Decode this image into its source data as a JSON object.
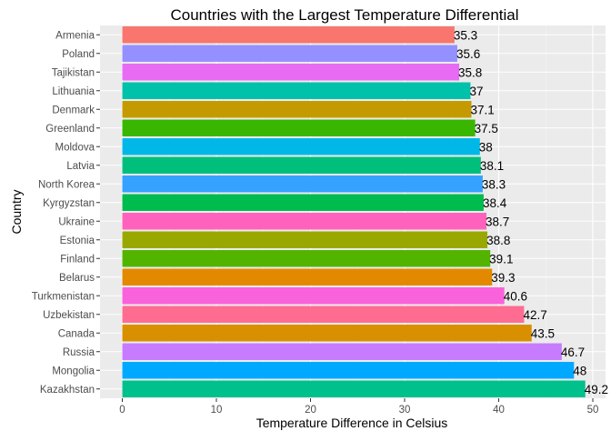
{
  "chart_data": {
    "type": "bar",
    "orientation": "horizontal",
    "title": "Countries with the Largest Temperature Differential",
    "xlabel": "Temperature Difference in Celsius",
    "ylabel": "Country",
    "xlim": [
      0,
      50
    ],
    "xticks": [
      "0",
      "10",
      "20",
      "30",
      "40",
      "50"
    ],
    "grid": true,
    "legend": "none",
    "background": "#ebebeb",
    "categories": [
      "Armenia",
      "Poland",
      "Tajikistan",
      "Lithuania",
      "Denmark",
      "Greenland",
      "Moldova",
      "Latvia",
      "North Korea",
      "Kyrgyzstan",
      "Ukraine",
      "Estonia",
      "Finland",
      "Belarus",
      "Turkmenistan",
      "Uzbekistan",
      "Canada",
      "Russia",
      "Mongolia",
      "Kazakhstan"
    ],
    "values": [
      35.3,
      35.6,
      35.8,
      37,
      37.1,
      37.5,
      38,
      38.1,
      38.3,
      38.4,
      38.7,
      38.8,
      39.1,
      39.3,
      40.6,
      42.7,
      43.5,
      46.7,
      48,
      49.2
    ],
    "value_labels": [
      "35.3",
      "35.6",
      "35.8",
      "37",
      "37.1",
      "37.5",
      "38",
      "38.1",
      "38.3",
      "38.4",
      "38.7",
      "38.8",
      "39.1",
      "39.3",
      "40.6",
      "42.7",
      "43.5",
      "46.7",
      "48",
      "49.2"
    ],
    "colors": [
      "#F8766D",
      "#9590FF",
      "#E76BF3",
      "#00C1AA",
      "#C49A00",
      "#39B600",
      "#00B8E7",
      "#00BF7D",
      "#35A2FF",
      "#00BB4E",
      "#FF62BC",
      "#99A800",
      "#53B400",
      "#E38900",
      "#FA62DB",
      "#FF6C91",
      "#D89000",
      "#C77CFF",
      "#00A9FF",
      "#00C08B"
    ]
  }
}
